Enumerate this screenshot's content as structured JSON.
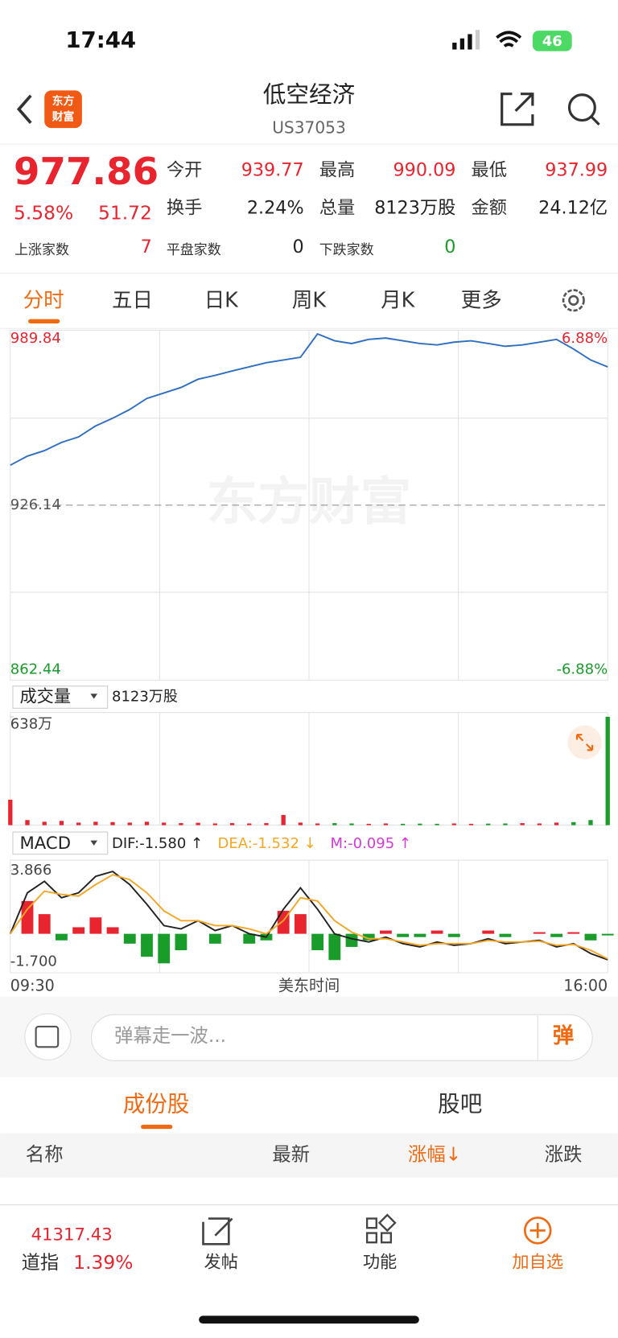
{
  "status": {
    "time": "17:44",
    "battery": "46"
  },
  "header": {
    "title": "低空经济",
    "code": "US37053"
  },
  "quote": {
    "price": "977.86",
    "change_pct": "5.58%",
    "change": "51.72",
    "fields": [
      {
        "label": "今开",
        "value": "939.77",
        "color": "#e8252f"
      },
      {
        "label": "最高",
        "value": "990.09",
        "color": "#e8252f"
      },
      {
        "label": "最低",
        "value": "937.99",
        "color": "#e8252f"
      },
      {
        "label": "换手",
        "value": "2.24%",
        "color": "#222"
      },
      {
        "label": "总量",
        "value": "8123万股",
        "color": "#222"
      },
      {
        "label": "金额",
        "value": "24.12亿",
        "color": "#222"
      }
    ],
    "counts": [
      {
        "label": "上涨家数",
        "value": "7",
        "color": "#e8252f"
      },
      {
        "label": "平盘家数",
        "value": "0",
        "color": "#222"
      },
      {
        "label": "下跌家数",
        "value": "0",
        "color": "#1a9c2a"
      }
    ]
  },
  "tabs": [
    "分时",
    "五日",
    "日K",
    "周K",
    "月K",
    "更多"
  ],
  "chart_data": [
    {
      "type": "line",
      "name": "price",
      "color": "#2f6fc0",
      "ylim": [
        862.44,
        989.84
      ],
      "yticks": [
        {
          "value": 989.84,
          "label": "989.84"
        },
        {
          "value": 926.14,
          "label": "926.14"
        },
        {
          "value": 862.44,
          "label": "862.44"
        }
      ],
      "right_labels": [
        "6.88%",
        "-6.88%"
      ],
      "watermark": "东方财富",
      "values": [
        940.7,
        944,
        946,
        949,
        951,
        955,
        957.8,
        961,
        965,
        967,
        969,
        972,
        973.4,
        975,
        976.5,
        978,
        979,
        980,
        988.5,
        986,
        985,
        986.5,
        987,
        986,
        985,
        984.5,
        985.5,
        986,
        985,
        984,
        984.5,
        985.5,
        986.5,
        983,
        979,
        976.5
      ]
    },
    {
      "type": "bar",
      "name": "volume",
      "label": "成交量",
      "total": "8123万股",
      "ylim": [
        0,
        638
      ],
      "yticks": [
        {
          "value": 638,
          "label": "638万"
        }
      ],
      "colors": {
        "up": "#e8252f",
        "down": "#1a9c2a"
      },
      "values": [
        150,
        30,
        20,
        25,
        15,
        20,
        18,
        15,
        20,
        15,
        12,
        14,
        10,
        12,
        10,
        12,
        60,
        15,
        10,
        12,
        10,
        8,
        10,
        8,
        9,
        8,
        10,
        8,
        9,
        10,
        12,
        10,
        15,
        18,
        30,
        638
      ]
    },
    {
      "type": "macd",
      "label": "MACD",
      "ylim": [
        -1.7,
        3.866
      ],
      "yticks": [
        {
          "value": 3.866,
          "label": "3.866"
        },
        {
          "value": -1.7,
          "label": "-1.700"
        }
      ],
      "legend": [
        {
          "text": "DIF:-1.580 ↑",
          "color": "#222"
        },
        {
          "text": "DEA:-1.532 ↓",
          "color": "#f5a623"
        },
        {
          "text": "M:-0.095 ↑",
          "color": "#d63ad6"
        }
      ],
      "series": [
        {
          "name": "DIF",
          "color": "#222",
          "values": [
            0,
            2.5,
            3.2,
            2.2,
            2.5,
            3.5,
            3.8,
            3.0,
            1.8,
            0.5,
            0.3,
            0.8,
            0.2,
            0.5,
            0,
            -0.2,
            1.5,
            2.8,
            1.5,
            0,
            -0.3,
            -0.5,
            -0.2,
            -0.6,
            -0.8,
            -0.5,
            -0.7,
            -0.6,
            -0.3,
            -0.6,
            -0.5,
            -0.4,
            -0.8,
            -0.6,
            -1.2,
            -1.58
          ]
        },
        {
          "name": "DEA",
          "color": "#f5a623",
          "values": [
            0,
            1.5,
            2.6,
            2.4,
            2.3,
            3.0,
            3.6,
            3.3,
            2.5,
            1.4,
            0.8,
            0.8,
            0.5,
            0.5,
            0.3,
            0,
            0.8,
            2.2,
            2.0,
            0.8,
            0.1,
            -0.3,
            -0.3,
            -0.5,
            -0.7,
            -0.6,
            -0.6,
            -0.6,
            -0.4,
            -0.5,
            -0.5,
            -0.45,
            -0.7,
            -0.65,
            -1.0,
            -1.53
          ]
        }
      ],
      "hist": [
        0,
        2,
        1.2,
        -0.4,
        0.4,
        1,
        0.4,
        -0.6,
        -1.4,
        -1.8,
        -1,
        0,
        -0.6,
        0,
        -0.6,
        -0.4,
        1.4,
        1.2,
        -1,
        -1.6,
        -0.8,
        -0.4,
        0.2,
        -0.2,
        -0.2,
        0.2,
        -0.2,
        0,
        0.2,
        -0.2,
        0,
        0.1,
        -0.2,
        0.1,
        -0.4,
        -0.1
      ]
    }
  ],
  "xlabels": [
    "09:30",
    "美东时间",
    "16:00"
  ],
  "comment": {
    "placeholder": "弹幕走一波...",
    "button": "弹"
  },
  "subtabs": [
    "成份股",
    "股吧"
  ],
  "table_headers": [
    "名称",
    "最新",
    "涨幅↓",
    "涨跌"
  ],
  "bottom": {
    "index_value": "41317.43",
    "index_name": "道指",
    "index_pct": "1.39%",
    "nav": [
      "发帖",
      "功能",
      "加自选"
    ]
  }
}
